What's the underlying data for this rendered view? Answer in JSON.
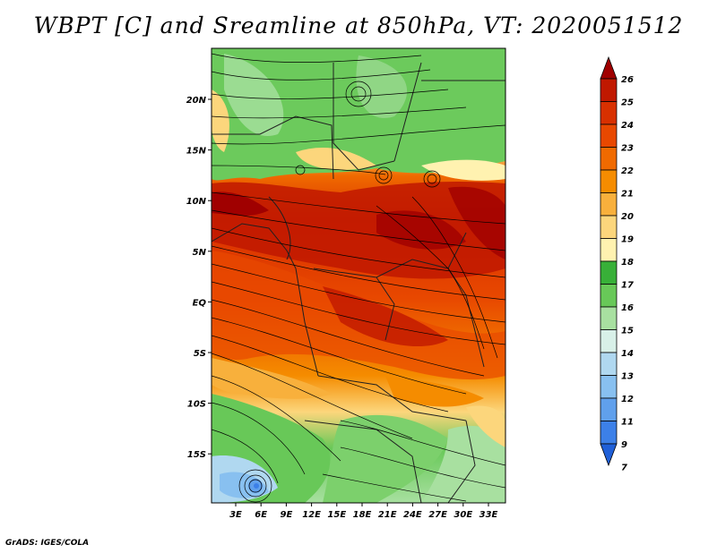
{
  "title": "WBPT [C] and Sreamline at 850hPa, VT: 2020051512",
  "map": {
    "lat_labels": [
      "20N",
      "15N",
      "10N",
      "5N",
      "EQ",
      "5S",
      "10S",
      "15S"
    ],
    "lon_labels": [
      "3E",
      "6E",
      "9E",
      "12E",
      "15E",
      "18E",
      "21E",
      "24E",
      "27E",
      "30E",
      "33E"
    ]
  },
  "colorbar": {
    "levels": [
      "26",
      "25",
      "24",
      "23",
      "22",
      "21",
      "20",
      "19",
      "18",
      "17",
      "16",
      "15",
      "14",
      "13",
      "12",
      "11",
      "9",
      "7"
    ],
    "colors": [
      "#a00000",
      "#c01800",
      "#d83000",
      "#e84800",
      "#f06a00",
      "#f58c00",
      "#f8b03c",
      "#fcd67c",
      "#fff2b0",
      "#38b038",
      "#68c858",
      "#a8e0a0",
      "#d8f0e8",
      "#b0d8f0",
      "#88c0f0",
      "#60a0ec",
      "#3c80e8",
      "#2060d8"
    ]
  },
  "credit": "GrADS: IGES/COLA"
}
